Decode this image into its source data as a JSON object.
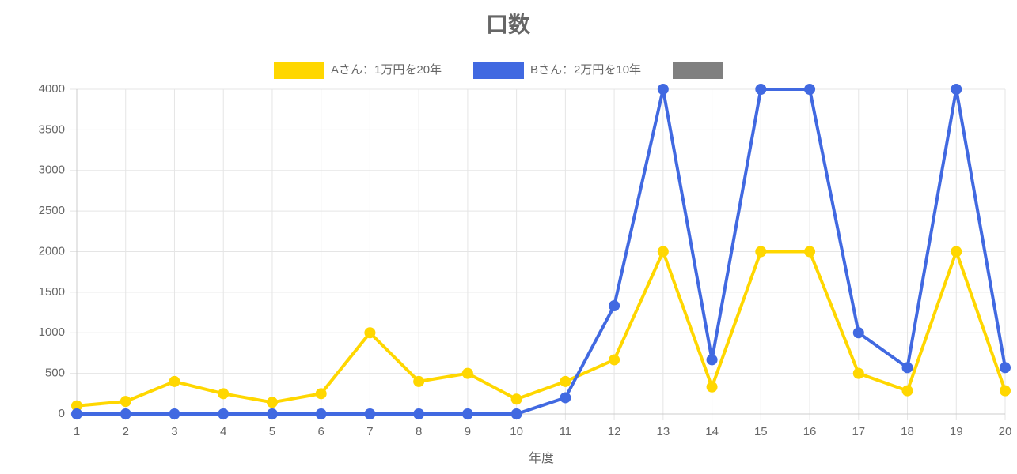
{
  "chart_data": {
    "type": "line",
    "title": "口数",
    "x_label": "年度",
    "categories": [
      1,
      2,
      3,
      4,
      5,
      6,
      7,
      8,
      9,
      10,
      11,
      12,
      13,
      14,
      15,
      16,
      17,
      18,
      19,
      20
    ],
    "series": [
      {
        "name": "Aさん：1万円を20年",
        "color": "#FFD700",
        "values": [
          100,
          154,
          400,
          250,
          143,
          250,
          1000,
          400,
          500,
          182,
          400,
          667,
          2000,
          333,
          2000,
          2000,
          500,
          286,
          2000,
          286
        ]
      },
      {
        "name": "Bさん：2万円を10年",
        "color": "#4169E1",
        "values": [
          0,
          0,
          0,
          0,
          0,
          0,
          0,
          0,
          0,
          0,
          200,
          1333,
          4000,
          667,
          4000,
          4000,
          1000,
          571,
          4000,
          571
        ]
      },
      {
        "color": "#808080"
      }
    ],
    "ylim": [
      0,
      4000
    ],
    "yticks": [
      0,
      500,
      1000,
      1500,
      2000,
      2500,
      3000,
      3500,
      4000
    ],
    "grid": true
  }
}
